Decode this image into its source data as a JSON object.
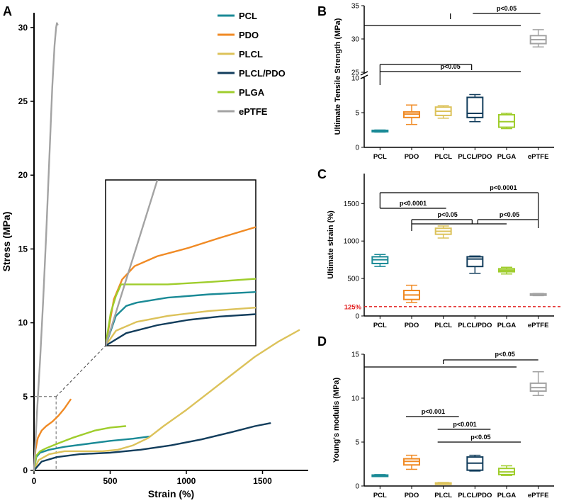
{
  "panels": {
    "A": "A",
    "B": "B",
    "C": "C",
    "D": "D"
  },
  "chart_data": [
    {
      "id": "A",
      "type": "line",
      "xlabel": "Strain (%)",
      "ylabel": "Stress (MPa)",
      "xlim": [
        0,
        1800
      ],
      "ylim": [
        0,
        31
      ],
      "xticks": [
        0,
        500,
        1000,
        1500
      ],
      "yticks": [
        0,
        5,
        10,
        15,
        20,
        25,
        30
      ],
      "legend_position": "top-right",
      "series": [
        {
          "name": "PCL",
          "color": "#1a8a96",
          "points": [
            [
              0,
              0
            ],
            [
              15,
              0.9
            ],
            [
              40,
              1.2
            ],
            [
              100,
              1.4
            ],
            [
              200,
              1.6
            ],
            [
              350,
              1.8
            ],
            [
              500,
              2.0
            ],
            [
              650,
              2.15
            ],
            [
              760,
              2.3
            ]
          ]
        },
        {
          "name": "PDO",
          "color": "#f08a24",
          "points": [
            [
              0,
              0
            ],
            [
              10,
              1.4
            ],
            [
              25,
              2.2
            ],
            [
              50,
              2.7
            ],
            [
              80,
              3.0
            ],
            [
              120,
              3.3
            ],
            [
              160,
              3.7
            ],
            [
              200,
              4.2
            ],
            [
              240,
              4.8
            ]
          ]
        },
        {
          "name": "PLCL",
          "color": "#dcc25a",
          "points": [
            [
              0,
              0
            ],
            [
              30,
              0.7
            ],
            [
              100,
              1.1
            ],
            [
              200,
              1.3
            ],
            [
              300,
              1.3
            ],
            [
              450,
              1.3
            ],
            [
              550,
              1.4
            ],
            [
              650,
              1.7
            ],
            [
              750,
              2.2
            ],
            [
              850,
              3.0
            ],
            [
              1000,
              4.1
            ],
            [
              1150,
              5.3
            ],
            [
              1300,
              6.5
            ],
            [
              1450,
              7.7
            ],
            [
              1600,
              8.7
            ],
            [
              1740,
              9.5
            ]
          ]
        },
        {
          "name": "PLCL/PDO",
          "color": "#123d5c",
          "points": [
            [
              0,
              0
            ],
            [
              50,
              0.6
            ],
            [
              150,
              0.9
            ],
            [
              300,
              1.1
            ],
            [
              500,
              1.2
            ],
            [
              700,
              1.4
            ],
            [
              900,
              1.7
            ],
            [
              1100,
              2.1
            ],
            [
              1300,
              2.6
            ],
            [
              1450,
              3.0
            ],
            [
              1550,
              3.2
            ]
          ]
        },
        {
          "name": "PLGA",
          "color": "#9fcd2c",
          "points": [
            [
              0,
              0
            ],
            [
              15,
              1.0
            ],
            [
              40,
              1.3
            ],
            [
              80,
              1.5
            ],
            [
              150,
              1.8
            ],
            [
              250,
              2.2
            ],
            [
              400,
              2.7
            ],
            [
              500,
              2.9
            ],
            [
              600,
              3.0
            ]
          ]
        },
        {
          "name": "ePTFE",
          "color": "#a3a3a3",
          "points": [
            [
              0,
              0
            ],
            [
              20,
              4.0
            ],
            [
              40,
              7.5
            ],
            [
              60,
              11.5
            ],
            [
              80,
              16
            ],
            [
              100,
              21
            ],
            [
              120,
              26
            ],
            [
              135,
              28.8
            ],
            [
              145,
              30.0
            ],
            [
              150,
              30.3
            ],
            [
              155,
              30.2
            ]
          ]
        }
      ],
      "inset": {
        "xlim": [
          0,
          145
        ],
        "ylim": [
          0,
          5
        ],
        "series": [
          {
            "name": "PCL",
            "color": "#1a8a96",
            "points": [
              [
                0,
                0
              ],
              [
                10,
                0.9
              ],
              [
                20,
                1.2
              ],
              [
                30,
                1.3
              ],
              [
                60,
                1.45
              ],
              [
                100,
                1.55
              ],
              [
                145,
                1.62
              ]
            ]
          },
          {
            "name": "PDO",
            "color": "#f08a24",
            "points": [
              [
                0,
                0
              ],
              [
                8,
                1.4
              ],
              [
                16,
                2.0
              ],
              [
                28,
                2.4
              ],
              [
                50,
                2.7
              ],
              [
                80,
                2.95
              ],
              [
                110,
                3.25
              ],
              [
                145,
                3.58
              ]
            ]
          },
          {
            "name": "PLCL",
            "color": "#dcc25a",
            "points": [
              [
                0,
                0
              ],
              [
                10,
                0.45
              ],
              [
                30,
                0.72
              ],
              [
                60,
                0.9
              ],
              [
                100,
                1.05
              ],
              [
                145,
                1.15
              ]
            ]
          },
          {
            "name": "PLCL/PDO",
            "color": "#123d5c",
            "points": [
              [
                0,
                0
              ],
              [
                20,
                0.38
              ],
              [
                50,
                0.62
              ],
              [
                80,
                0.78
              ],
              [
                110,
                0.88
              ],
              [
                145,
                0.95
              ]
            ]
          },
          {
            "name": "PLGA",
            "color": "#9fcd2c",
            "points": [
              [
                0,
                0
              ],
              [
                5,
                1.0
              ],
              [
                10,
                1.5
              ],
              [
                15,
                1.85
              ],
              [
                30,
                1.85
              ],
              [
                60,
                1.85
              ],
              [
                100,
                1.92
              ],
              [
                145,
                2.02
              ]
            ]
          },
          {
            "name": "ePTFE",
            "color": "#a3a3a3",
            "points": [
              [
                0,
                0
              ],
              [
                10,
                1.0
              ],
              [
                20,
                2.0
              ],
              [
                30,
                3.0
              ],
              [
                40,
                4.0
              ],
              [
                50,
                5.0
              ]
            ]
          }
        ]
      },
      "callout": {
        "x": 145,
        "y": 5,
        "y_label": "5"
      }
    },
    {
      "id": "B",
      "type": "boxplot",
      "ylabel": "Ultimate Tensile Strength (MPa)",
      "categories": [
        "PCL",
        "PDO",
        "PLCL",
        "PLCL/PDO",
        "PLGA",
        "ePTFE"
      ],
      "axis_break": {
        "lower": [
          0,
          10
        ],
        "upper": [
          25,
          35
        ]
      },
      "yticks_lower": [
        0,
        5,
        10
      ],
      "yticks_upper": [
        25,
        30,
        35
      ],
      "boxes": [
        {
          "min": 2.2,
          "q1": 2.25,
          "med": 2.35,
          "q3": 2.45,
          "max": 2.5
        },
        {
          "min": 3.3,
          "q1": 4.3,
          "med": 4.8,
          "q3": 5.1,
          "max": 6.1
        },
        {
          "min": 4.2,
          "q1": 4.6,
          "med": 5.2,
          "q3": 5.8,
          "max": 6.0
        },
        {
          "min": 3.7,
          "q1": 4.3,
          "med": 4.9,
          "q3": 7.2,
          "max": 7.6
        },
        {
          "min": 2.7,
          "q1": 2.9,
          "med": 3.7,
          "q3": 4.7,
          "max": 4.9
        },
        {
          "min": 28.8,
          "q1": 29.3,
          "med": 29.9,
          "q3": 30.5,
          "max": 31.4
        }
      ],
      "colors": [
        "#1a8a96",
        "#f08a24",
        "#dcc25a",
        "#123d5c",
        "#9fcd2c",
        "#a3a3a3"
      ],
      "significance": [
        {
          "label": "p<0.05",
          "from": 3,
          "to": 5,
          "level": "upper-top"
        },
        {
          "label": "p<0.05",
          "from": 0,
          "to": 4,
          "level": "lower"
        }
      ]
    },
    {
      "id": "C",
      "type": "boxplot",
      "ylabel": "Ultimate strain (%)",
      "categories": [
        "PCL",
        "PDO",
        "PLCL",
        "PLCL/PDO",
        "PLGA",
        "ePTFE"
      ],
      "ylim": [
        0,
        1900
      ],
      "yticks": [
        0,
        500,
        1000,
        1500
      ],
      "reference_line": {
        "value": 125,
        "label": "125%",
        "color": "#e11b1b"
      },
      "boxes": [
        {
          "min": 660,
          "q1": 700,
          "med": 750,
          "q3": 790,
          "max": 820
        },
        {
          "min": 180,
          "q1": 220,
          "med": 280,
          "q3": 340,
          "max": 410
        },
        {
          "min": 1040,
          "q1": 1090,
          "med": 1130,
          "q3": 1170,
          "max": 1200
        },
        {
          "min": 570,
          "q1": 660,
          "med": 760,
          "q3": 790,
          "max": 800
        },
        {
          "min": 560,
          "q1": 590,
          "med": 610,
          "q3": 630,
          "max": 650
        },
        {
          "min": 270,
          "q1": 280,
          "med": 285,
          "q3": 295,
          "max": 300
        }
      ],
      "colors": [
        "#1a8a96",
        "#f08a24",
        "#dcc25a",
        "#123d5c",
        "#9fcd2c",
        "#a3a3a3"
      ],
      "significance": [
        {
          "label": "p<0.0001",
          "from": 0,
          "to": 5
        },
        {
          "label": "p<0.0001",
          "from": 0,
          "to": 2
        },
        {
          "label": "p<0.05",
          "from": 1,
          "to": 5
        },
        {
          "label": "p<0.05",
          "from": 3,
          "to": 5
        }
      ]
    },
    {
      "id": "D",
      "type": "boxplot",
      "ylabel": "Young's modulis (MPa)",
      "categories": [
        "PCL",
        "PDO",
        "PLCL",
        "PLCL/PDO",
        "PLGA",
        "ePTFE"
      ],
      "ylim": [
        0,
        15
      ],
      "yticks": [
        0,
        5,
        10,
        15
      ],
      "boxes": [
        {
          "min": 1.1,
          "q1": 1.15,
          "med": 1.2,
          "q3": 1.25,
          "max": 1.3
        },
        {
          "min": 1.9,
          "q1": 2.4,
          "med": 2.8,
          "q3": 3.1,
          "max": 3.5
        },
        {
          "min": 0.2,
          "q1": 0.25,
          "med": 0.3,
          "q3": 0.35,
          "max": 0.4
        },
        {
          "min": 1.7,
          "q1": 1.8,
          "med": 2.6,
          "q3": 3.3,
          "max": 3.5
        },
        {
          "min": 1.2,
          "q1": 1.3,
          "med": 1.6,
          "q3": 2.0,
          "max": 2.3
        },
        {
          "min": 10.3,
          "q1": 10.8,
          "med": 11.2,
          "q3": 11.7,
          "max": 13.0
        }
      ],
      "colors": [
        "#1a8a96",
        "#f08a24",
        "#dcc25a",
        "#123d5c",
        "#9fcd2c",
        "#a3a3a3"
      ],
      "significance": [
        {
          "label": "p<0.05",
          "from": 0,
          "to": 4
        },
        {
          "label": "p<0.001",
          "from": 1,
          "to": 3
        },
        {
          "label": "p<0.001",
          "from": 2,
          "to": 4
        },
        {
          "label": "p<0.05",
          "from": 2,
          "to": 5
        }
      ]
    }
  ]
}
